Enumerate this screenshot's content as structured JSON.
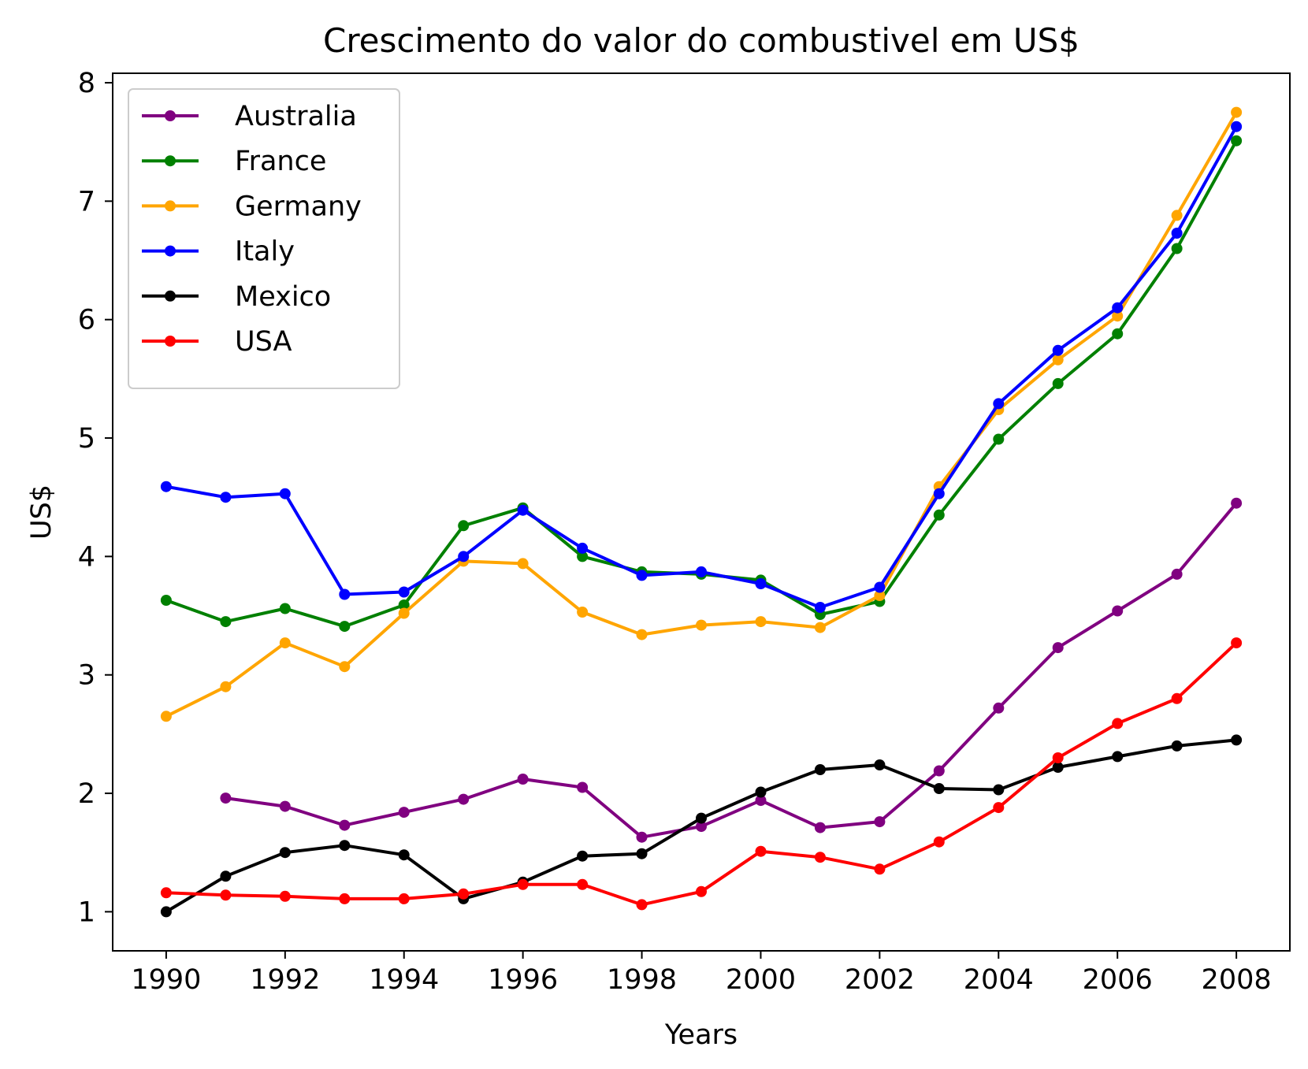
{
  "chart_data": {
    "type": "line",
    "title": "Crescimento do valor do combustivel em US$",
    "xlabel": "Years",
    "ylabel": "US$",
    "x": [
      1990,
      1991,
      1992,
      1993,
      1994,
      1995,
      1996,
      1997,
      1998,
      1999,
      2000,
      2001,
      2002,
      2003,
      2004,
      2005,
      2006,
      2007,
      2008
    ],
    "xticks": [
      "1990",
      "1992",
      "1994",
      "1996",
      "1998",
      "2000",
      "2002",
      "2004",
      "2006",
      "2008"
    ],
    "yticks": [
      "1",
      "2",
      "3",
      "4",
      "5",
      "6",
      "7",
      "8"
    ],
    "xlim": [
      1989.1,
      2008.9
    ],
    "ylim": [
      0.67,
      8.08
    ],
    "grid": false,
    "legend_position": "top-left",
    "series": [
      {
        "name": "Australia",
        "color": "#800080",
        "values": [
          null,
          1.96,
          1.89,
          1.73,
          1.84,
          1.95,
          2.12,
          2.05,
          1.63,
          1.72,
          1.94,
          1.71,
          1.76,
          2.19,
          2.72,
          3.23,
          3.54,
          3.85,
          4.45
        ]
      },
      {
        "name": "France",
        "color": "#008000",
        "values": [
          3.63,
          3.45,
          3.56,
          3.41,
          3.59,
          4.26,
          4.41,
          4.0,
          3.87,
          3.85,
          3.8,
          3.51,
          3.62,
          4.35,
          4.99,
          5.46,
          5.88,
          6.6,
          7.51
        ]
      },
      {
        "name": "Germany",
        "color": "#FFA500",
        "values": [
          2.65,
          2.9,
          3.27,
          3.07,
          3.52,
          3.96,
          3.94,
          3.53,
          3.34,
          3.42,
          3.45,
          3.4,
          3.67,
          4.59,
          5.24,
          5.66,
          6.03,
          6.88,
          7.75
        ]
      },
      {
        "name": "Italy",
        "color": "#0000FF",
        "values": [
          4.59,
          4.5,
          4.53,
          3.68,
          3.7,
          4.0,
          4.39,
          4.07,
          3.84,
          3.87,
          3.77,
          3.57,
          3.74,
          4.53,
          5.29,
          5.74,
          6.1,
          6.73,
          7.63
        ]
      },
      {
        "name": "Mexico",
        "color": "#000000",
        "values": [
          1.0,
          1.3,
          1.5,
          1.56,
          1.48,
          1.11,
          1.25,
          1.47,
          1.49,
          1.79,
          2.01,
          2.2,
          2.24,
          2.04,
          2.03,
          2.22,
          2.31,
          2.4,
          2.45
        ]
      },
      {
        "name": "USA",
        "color": "#FF0000",
        "values": [
          1.16,
          1.14,
          1.13,
          1.11,
          1.11,
          1.15,
          1.23,
          1.23,
          1.06,
          1.17,
          1.51,
          1.46,
          1.36,
          1.59,
          1.88,
          2.3,
          2.59,
          2.8,
          3.27
        ]
      }
    ]
  }
}
